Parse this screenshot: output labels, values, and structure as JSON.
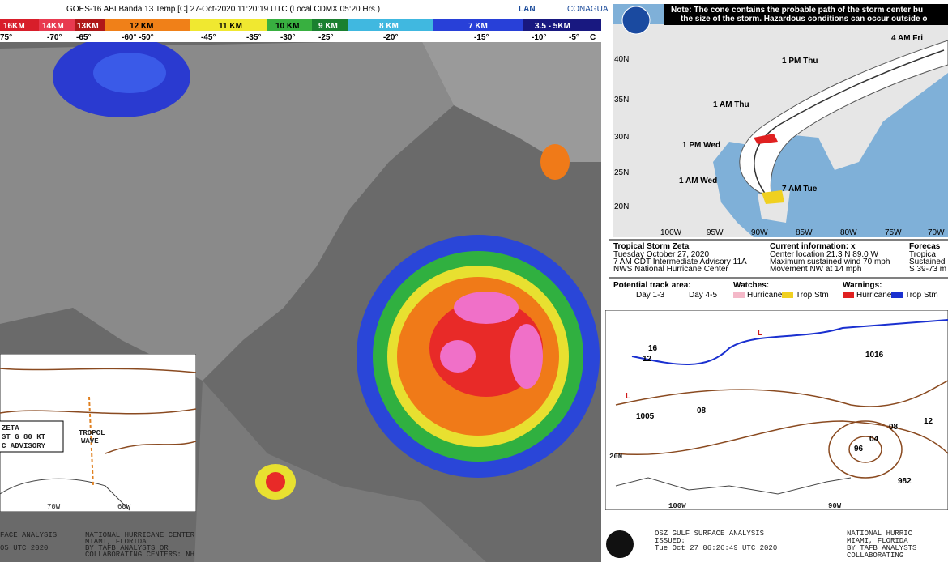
{
  "satellite": {
    "title": "GOES-16 ABI Banda 13 Temp.[C] 27-Oct-2020 11:20:19 UTC (Local CDMX  05:20 Hrs.)",
    "logo_left": "LAN",
    "logo_right": "CONAGUA",
    "heights": [
      "16KM",
      "14KM",
      "13KM",
      "12 KM",
      "11 KM",
      "10 KM",
      "9 KM",
      "8 KM",
      "7 KM",
      "3.5 - 5KM"
    ],
    "temps": [
      "75°",
      "-70°",
      "-65°",
      "-60°  -50°",
      "-45°",
      "-35°",
      "-30°",
      "-25°",
      "-20°",
      "-15°",
      "-10°",
      "-5°",
      "C"
    ]
  },
  "cone_map": {
    "note": [
      "Note: The cone contains the probable path of the storm center bu",
      "the size of the storm. Hazardous conditions can occur outside o"
    ],
    "times": [
      "4 AM Fri",
      "1 PM Thu",
      "1 AM Thu",
      "1 PM Wed",
      "1 AM Wed",
      "7 AM Tue"
    ],
    "lat_labels": [
      "40N",
      "35N",
      "30N",
      "25N",
      "20N"
    ],
    "lon_labels": [
      "100W",
      "95W",
      "90W",
      "85W",
      "80W",
      "75W",
      "70W"
    ],
    "storm": "Tropical Storm Zeta",
    "storm_lines": [
      "Tuesday October 27, 2020",
      "7 AM CDT Intermediate Advisory 11A",
      "NWS National Hurricane Center"
    ],
    "current_title": "Current information: x",
    "current_lines": [
      "Center location 21.3 N 89.0 W",
      "Maximum sustained wind 70 mph",
      "Movement NW at 14 mph"
    ],
    "forecast_title": "Forecas",
    "forecast_lines": [
      "Tropica",
      "Sustained",
      "S 39-73 m"
    ],
    "legend": {
      "track": "Potential track area:",
      "day13": "Day 1-3",
      "day45": "Day 4-5",
      "watches": "Watches:",
      "watch_hurricane": "Hurricane",
      "watch_ts": "Trop Stm",
      "warnings": "Warnings:",
      "warn_hurricane": "Hurricane",
      "warn_ts": "Trop Stm"
    }
  },
  "surface": {
    "labels": [
      "16",
      "12",
      "1016",
      "1005",
      "08",
      "08",
      "96",
      "04",
      "982",
      "12",
      "20N",
      "100W",
      "90W"
    ],
    "footer_left": [
      "OSZ GULF SURFACE ANALYSIS",
      "ISSUED:",
      "Tue Oct 27 06:26:49 UTC 2020"
    ],
    "footer_right": [
      "NATIONAL HURRIC",
      "MIAMI, FLORIDA",
      "BY TAFB ANALYSTS",
      "COLLABORATING"
    ]
  },
  "inset": {
    "labels": [
      "ZETA",
      "ST G 80 KT",
      "C ADVISORY",
      "TROPCL",
      "WAVE",
      "70W",
      "60W"
    ],
    "footer_left": [
      "FACE ANALYSIS",
      "05 UTC 2020"
    ],
    "footer_right": [
      "NATIONAL HURRICANE CENTER",
      "MIAMI, FLORIDA",
      "BY TAFB ANALYSTS OR",
      "COLLABORATING CENTERS: NH"
    ]
  }
}
